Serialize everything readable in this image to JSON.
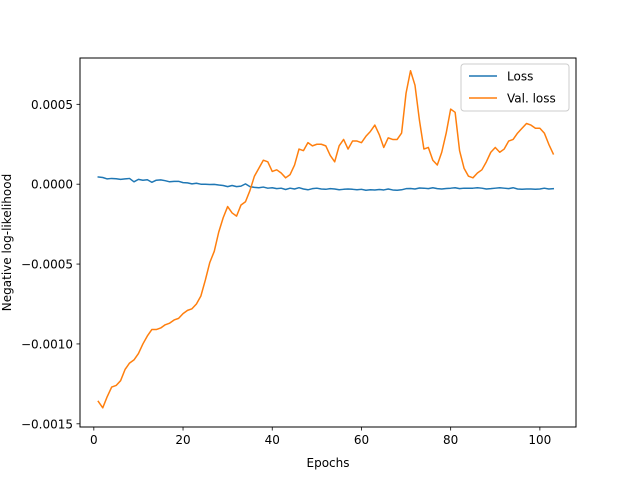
{
  "chart_data": {
    "type": "line",
    "title": "",
    "xlabel": "Epochs",
    "ylabel": "Negative log-likelihood",
    "xlim": [
      -3.1,
      108.1
    ],
    "ylim": [
      -0.00152,
      0.00079
    ],
    "xticks": [
      0,
      20,
      40,
      60,
      80,
      100
    ],
    "xtick_labels": [
      "0",
      "20",
      "40",
      "60",
      "80",
      "100"
    ],
    "yticks": [
      -0.0015,
      -0.001,
      -0.0005,
      0.0,
      0.0005
    ],
    "ytick_labels": [
      "−0.0015",
      "−0.0010",
      "−0.0005",
      "0.0000",
      "0.0005"
    ],
    "grid": false,
    "legend_position": "top-right",
    "series": [
      {
        "name": "Loss",
        "color": "#1f77b4",
        "x": [
          1,
          2,
          3,
          4,
          5,
          6,
          7,
          8,
          9,
          10,
          11,
          12,
          13,
          14,
          15,
          16,
          17,
          18,
          19,
          20,
          21,
          22,
          23,
          24,
          25,
          26,
          27,
          28,
          29,
          30,
          31,
          32,
          33,
          34,
          35,
          36,
          37,
          38,
          39,
          40,
          41,
          42,
          43,
          44,
          45,
          46,
          47,
          48,
          49,
          50,
          51,
          52,
          53,
          54,
          55,
          56,
          57,
          58,
          59,
          60,
          61,
          62,
          63,
          64,
          65,
          66,
          67,
          68,
          69,
          70,
          71,
          72,
          73,
          74,
          75,
          76,
          77,
          78,
          79,
          80,
          81,
          82,
          83,
          84,
          85,
          86,
          87,
          88,
          89,
          90,
          91,
          92,
          93,
          94,
          95,
          96,
          97,
          98,
          99,
          100,
          101,
          102,
          103
        ],
        "y": [
          4.5e-05,
          4.2e-05,
          3.3e-05,
          3.6e-05,
          3.4e-05,
          3e-05,
          3.3e-05,
          3.6e-05,
          1.5e-05,
          3e-05,
          2.5e-05,
          2.8e-05,
          1.2e-05,
          2.5e-05,
          2.7e-05,
          2.2e-05,
          1.5e-05,
          1.8e-05,
          1.8e-05,
          1e-05,
          8e-06,
          2e-06,
          6e-06,
          0.0,
          0.0,
          -2e-06,
          -1e-06,
          -5e-06,
          -8e-06,
          -1.5e-05,
          -8e-06,
          -1.5e-05,
          -1.2e-05,
          2e-06,
          -1.5e-05,
          -2e-05,
          -2.2e-05,
          -1.8e-05,
          -2.5e-05,
          -2.2e-05,
          -2.8e-05,
          -2.5e-05,
          -3.3e-05,
          -2.5e-05,
          -3e-05,
          -2.2e-05,
          -3e-05,
          -3.5e-05,
          -2.8e-05,
          -2.5e-05,
          -3e-05,
          -3.2e-05,
          -2.8e-05,
          -3e-05,
          -3.5e-05,
          -3.2e-05,
          -3e-05,
          -3.2e-05,
          -3.5e-05,
          -3.2e-05,
          -3.8e-05,
          -3.5e-05,
          -3.6e-05,
          -3.3e-05,
          -3.6e-05,
          -3e-05,
          -3.6e-05,
          -3.8e-05,
          -3.5e-05,
          -2.8e-05,
          -2.7e-05,
          -3e-05,
          -2.4e-05,
          -2.5e-05,
          -2.8e-05,
          -2.2e-05,
          -2.8e-05,
          -3e-05,
          -2.7e-05,
          -2.5e-05,
          -2.2e-05,
          -2.8e-05,
          -2.5e-05,
          -2.5e-05,
          -2.5e-05,
          -2.2e-05,
          -2.5e-05,
          -3e-05,
          -2.8e-05,
          -2.5e-05,
          -2.2e-05,
          -2.5e-05,
          -2.8e-05,
          -2.2e-05,
          -3e-05,
          -3.2e-05,
          -3e-05,
          -3e-05,
          -3.2e-05,
          -3e-05,
          -2.5e-05,
          -3e-05,
          -2.8e-05
        ]
      },
      {
        "name": "Val. loss",
        "color": "#ff7f0e",
        "x": [
          1,
          2,
          3,
          4,
          5,
          6,
          7,
          8,
          9,
          10,
          11,
          12,
          13,
          14,
          15,
          16,
          17,
          18,
          19,
          20,
          21,
          22,
          23,
          24,
          25,
          26,
          27,
          28,
          29,
          30,
          31,
          32,
          33,
          34,
          35,
          36,
          37,
          38,
          39,
          40,
          41,
          42,
          43,
          44,
          45,
          46,
          47,
          48,
          49,
          50,
          51,
          52,
          53,
          54,
          55,
          56,
          57,
          58,
          59,
          60,
          61,
          62,
          63,
          64,
          65,
          66,
          67,
          68,
          69,
          70,
          71,
          72,
          73,
          74,
          75,
          76,
          77,
          78,
          79,
          80,
          81,
          82,
          83,
          84,
          85,
          86,
          87,
          88,
          89,
          90,
          91,
          92,
          93,
          94,
          95,
          96,
          97,
          98,
          99,
          100,
          101,
          102,
          103
        ],
        "y": [
          -0.00136,
          -0.0014,
          -0.00133,
          -0.00127,
          -0.00126,
          -0.00123,
          -0.00116,
          -0.00112,
          -0.0011,
          -0.00106,
          -0.001,
          -0.00095,
          -0.00091,
          -0.00091,
          -0.0009,
          -0.00088,
          -0.00087,
          -0.00085,
          -0.00084,
          -0.00081,
          -0.00079,
          -0.00078,
          -0.00075,
          -0.0007,
          -0.0006,
          -0.00049,
          -0.00042,
          -0.0003,
          -0.00021,
          -0.00014,
          -0.00018,
          -0.0002,
          -0.00013,
          -0.00011,
          -4e-05,
          5e-05,
          0.0001,
          0.00015,
          0.00014,
          8e-05,
          9e-05,
          7e-05,
          4e-05,
          6e-05,
          0.00012,
          0.00022,
          0.00021,
          0.00026,
          0.00024,
          0.00025,
          0.00025,
          0.00024,
          0.00018,
          0.00014,
          0.00024,
          0.00028,
          0.00022,
          0.00027,
          0.00027,
          0.00026,
          0.0003,
          0.00033,
          0.00037,
          0.00031,
          0.00023,
          0.00029,
          0.00028,
          0.00028,
          0.00032,
          0.00057,
          0.00071,
          0.00062,
          0.0004,
          0.00022,
          0.00023,
          0.00015,
          0.00012,
          0.0002,
          0.00032,
          0.00047,
          0.00045,
          0.00021,
          0.0001,
          5e-05,
          4e-05,
          7e-05,
          9e-05,
          0.00014,
          0.0002,
          0.00023,
          0.0002,
          0.00022,
          0.00027,
          0.00028,
          0.00032,
          0.00035,
          0.00038,
          0.00037,
          0.00035,
          0.00035,
          0.00032,
          0.00025,
          0.00019
        ]
      }
    ]
  }
}
